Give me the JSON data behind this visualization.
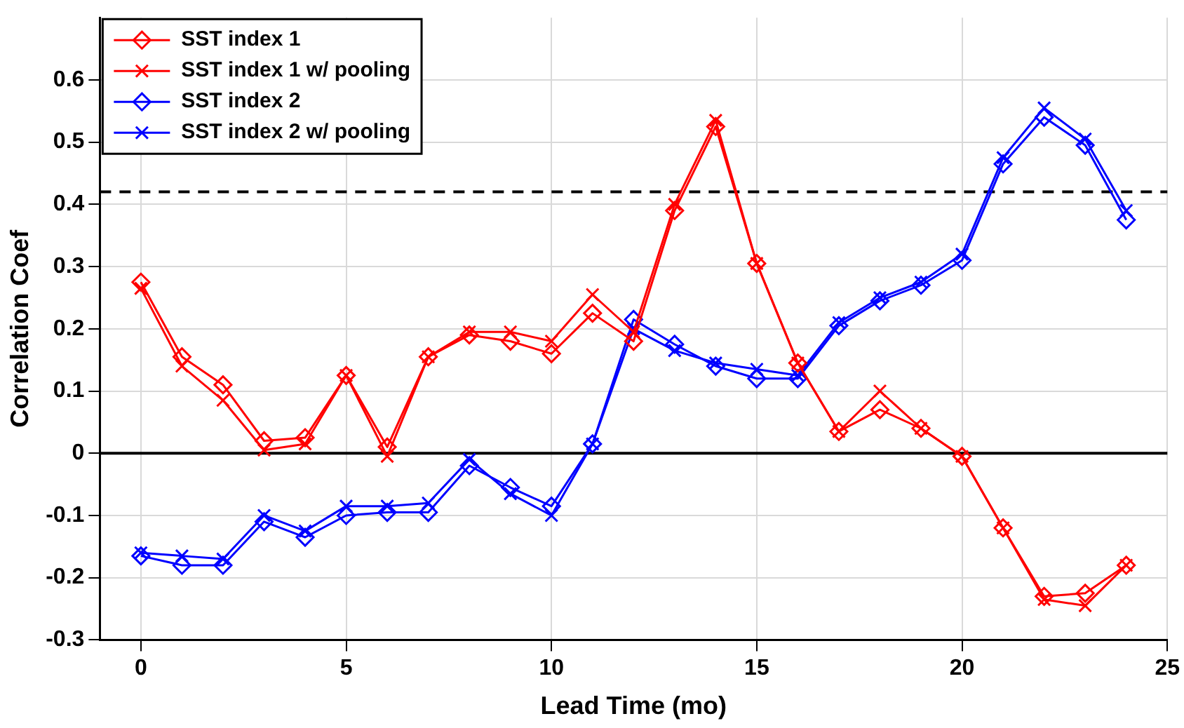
{
  "chart_data": {
    "type": "line",
    "xlabel": "Lead Time (mo)",
    "ylabel": "Correlation Coef",
    "x": [
      0,
      1,
      2,
      3,
      4,
      5,
      6,
      7,
      8,
      9,
      10,
      11,
      12,
      13,
      14,
      15,
      16,
      17,
      18,
      19,
      20,
      21,
      22,
      23,
      24
    ],
    "xlim": [
      -1,
      25
    ],
    "xticks": [
      0,
      5,
      10,
      15,
      20,
      25
    ],
    "ylim": [
      -0.3,
      0.7
    ],
    "yticks": [
      -0.3,
      -0.2,
      -0.1,
      0,
      0.1,
      0.2,
      0.3,
      0.4,
      0.5,
      0.6
    ],
    "grid": true,
    "legend": "top left",
    "line_style": "solid",
    "ref_lines": [
      {
        "axis": "y",
        "value": 0.42,
        "color": "#000000",
        "line_style": "dashed"
      },
      {
        "axis": "y",
        "value": 0,
        "color": "#000000",
        "line_style": "solid"
      }
    ],
    "series": [
      {
        "name": "SST index 1",
        "color": "#ff0000",
        "marker": "diamond",
        "values": [
          0.275,
          0.155,
          0.11,
          0.02,
          0.025,
          0.125,
          0.01,
          0.155,
          0.19,
          0.18,
          0.16,
          0.225,
          0.18,
          0.39,
          0.525,
          0.305,
          0.145,
          0.035,
          0.07,
          0.04,
          -0.005,
          -0.12,
          -0.23,
          -0.225,
          -0.18
        ]
      },
      {
        "name": "SST index 1 w/ pooling",
        "color": "#ff0000",
        "marker": "cross",
        "values": [
          0.265,
          0.14,
          0.085,
          0.005,
          0.015,
          0.125,
          -0.005,
          0.155,
          0.195,
          0.195,
          0.18,
          0.255,
          0.195,
          0.4,
          0.535,
          0.305,
          0.145,
          0.035,
          0.1,
          0.04,
          -0.005,
          -0.12,
          -0.235,
          -0.245,
          -0.18
        ]
      },
      {
        "name": "SST index 2",
        "color": "#0000ff",
        "marker": "diamond",
        "values": [
          -0.165,
          -0.18,
          -0.18,
          -0.11,
          -0.135,
          -0.1,
          -0.095,
          -0.095,
          -0.02,
          -0.055,
          -0.085,
          0.015,
          0.215,
          0.175,
          0.14,
          0.12,
          0.12,
          0.205,
          0.245,
          0.27,
          0.31,
          0.465,
          0.54,
          0.495,
          0.375
        ]
      },
      {
        "name": "SST index 2 w/ pooling",
        "color": "#0000ff",
        "marker": "cross",
        "values": [
          -0.16,
          -0.165,
          -0.17,
          -0.1,
          -0.125,
          -0.085,
          -0.085,
          -0.08,
          -0.01,
          -0.065,
          -0.1,
          0.015,
          0.2,
          0.165,
          0.145,
          0.135,
          0.125,
          0.21,
          0.25,
          0.275,
          0.32,
          0.475,
          0.555,
          0.505,
          0.39
        ]
      }
    ]
  }
}
